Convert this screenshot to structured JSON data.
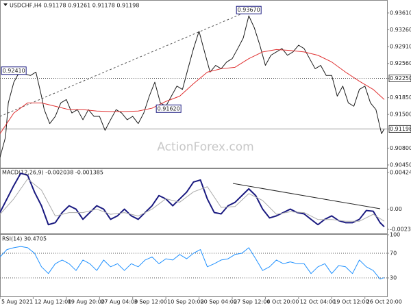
{
  "chart_data": [
    {
      "type": "line",
      "title": "USDCHF,H4  0.91178 0.91261 0.91178 0.91198",
      "watermark": "ActionForex.com",
      "xlim": [
        0,
        140
      ],
      "ylim": [
        0.90393,
        0.93865
      ],
      "yticks": [
        {
          "value": 0.9361,
          "label": "0.93610"
        },
        {
          "value": 0.9326,
          "label": "0.93260"
        },
        {
          "value": 0.9291,
          "label": "0.92910"
        },
        {
          "value": 0.9256,
          "label": "0.92560"
        },
        {
          "value": 0.9225,
          "label": "0.92250"
        },
        {
          "value": 0.9185,
          "label": "0.91850"
        },
        {
          "value": 0.915,
          "label": "0.91500"
        },
        0.91198,
        {
          "value": 0.908,
          "label": "0.90800"
        },
        {
          "value": 0.9045,
          "label": "0.90450"
        }
      ],
      "hlines": [
        0.9225,
        0.91198
      ],
      "annotations": [
        {
          "x": 90,
          "value": 0.9367,
          "label": "0.93670"
        },
        {
          "x": 5,
          "value": 0.9241,
          "label": "0.92410"
        },
        {
          "x": 61,
          "value": 0.9162,
          "label": "0.91620"
        }
      ],
      "series": [
        {
          "color": "#1a1a1a",
          "x": [
            0,
            2,
            3,
            5,
            7,
            9,
            11,
            13,
            15,
            16,
            18,
            20,
            22,
            24,
            26,
            28,
            30,
            32,
            34,
            36,
            38,
            40,
            42,
            44,
            46,
            48,
            50,
            52,
            54,
            56,
            58,
            60,
            62,
            64,
            66,
            68,
            70,
            72,
            74,
            76,
            78,
            80,
            82,
            84,
            86,
            88,
            90,
            92,
            94,
            96,
            98,
            100,
            102,
            104,
            106,
            108,
            110,
            112,
            114,
            116,
            118,
            120,
            122,
            124,
            126,
            128,
            130,
            132,
            134,
            136,
            138,
            139
          ],
          "values": [
            0.9061,
            0.9103,
            0.9174,
            0.9217,
            0.9238,
            0.9234,
            0.9231,
            0.9238,
            0.9188,
            0.916,
            0.9131,
            0.9146,
            0.9174,
            0.9181,
            0.9153,
            0.916,
            0.9139,
            0.916,
            0.9146,
            0.9146,
            0.9117,
            0.9139,
            0.916,
            0.9153,
            0.9139,
            0.9146,
            0.9131,
            0.9153,
            0.9188,
            0.9217,
            0.9174,
            0.9167,
            0.9188,
            0.9209,
            0.9202,
            0.9245,
            0.9287,
            0.9323,
            0.928,
            0.9238,
            0.9252,
            0.9245,
            0.9259,
            0.9266,
            0.9287,
            0.9309,
            0.9355,
            0.933,
            0.9294,
            0.9252,
            0.9273,
            0.928,
            0.9287,
            0.9273,
            0.928,
            0.9294,
            0.9287,
            0.9266,
            0.9245,
            0.9252,
            0.9231,
            0.9231,
            0.9188,
            0.9209,
            0.9174,
            0.9167,
            0.9202,
            0.9209,
            0.9174,
            0.916,
            0.911,
            0.91198
          ]
        },
        {
          "color": "#e03030",
          "x": [
            0,
            5,
            10,
            15,
            20,
            25,
            30,
            35,
            40,
            45,
            50,
            55,
            60,
            65,
            70,
            75,
            80,
            85,
            90,
            95,
            100,
            105,
            110,
            115,
            120,
            125,
            130,
            135,
            139
          ],
          "values": [
            0.911,
            0.9153,
            0.9174,
            0.9174,
            0.9167,
            0.916,
            0.916,
            0.9157,
            0.9156,
            0.9156,
            0.9157,
            0.9163,
            0.9177,
            0.9188,
            0.9214,
            0.9238,
            0.9245,
            0.9248,
            0.9266,
            0.928,
            0.9285,
            0.9283,
            0.928,
            0.9273,
            0.9259,
            0.9238,
            0.9219,
            0.9202,
            0.9181
          ]
        }
      ]
    },
    {
      "type": "line",
      "title": "MACD(12,26,9) -0.002038 -0.001385",
      "xlim": [
        0,
        140
      ],
      "ylim": [
        -0.00281,
        0.00464
      ],
      "yticks": [
        0.004248,
        {
          "value": 0,
          "label": "0.00"
        },
        -0.002337
      ],
      "series": [
        {
          "color": "#1a1a80",
          "width": 2,
          "x": [
            0,
            2.5,
            5,
            7.5,
            10,
            12.5,
            15,
            17.5,
            20,
            22.5,
            25,
            27.5,
            30,
            32.5,
            35,
            37.5,
            40,
            42.5,
            45,
            47.5,
            50,
            52.5,
            55,
            57.5,
            60,
            62.5,
            65,
            67.5,
            70,
            72.5,
            75,
            77.5,
            80,
            82.5,
            85,
            87.5,
            90,
            92.5,
            95,
            97.5,
            100,
            102.5,
            105,
            107.5,
            110,
            112.5,
            115,
            117.5,
            120,
            122.5,
            125,
            127.5,
            130,
            132.5,
            135,
            137.5,
            139
          ],
          "values": [
            -0.00039,
            0.00118,
            0.00274,
            0.00415,
            0.00392,
            0.00196,
            0.00039,
            -0.0018,
            -0.00157,
            -0.00039,
            0.00039,
            0,
            -0.00118,
            -0.00039,
            0.00039,
            0,
            -0.00118,
            -0.00078,
            0,
            -0.00078,
            -0.00118,
            -0.00039,
            0.00039,
            0.00157,
            0.00118,
            0.00039,
            0.00118,
            0.00196,
            0.00314,
            0.00337,
            0.00118,
            -0.00039,
            -0.00055,
            0.00039,
            0.00078,
            0.00157,
            0.00235,
            0.00157,
            0,
            -0.00102,
            -0.00078,
            -0.00039,
            0,
            -0.00039,
            -0.00055,
            -0.00118,
            -0.0018,
            -0.00118,
            -0.00078,
            -0.00133,
            -0.00157,
            -0.00157,
            -0.00118,
            -0.00016,
            -0.00024,
            -0.00157,
            -0.00204
          ]
        },
        {
          "color": "#aaaaaa",
          "width": 1,
          "x": [
            0,
            5,
            10,
            15,
            20,
            25,
            30,
            35,
            40,
            45,
            50,
            55,
            60,
            65,
            70,
            75,
            80,
            85,
            90,
            95,
            100,
            105,
            110,
            115,
            120,
            125,
            130,
            135,
            139
          ],
          "values": [
            -0.0006,
            0.0012,
            0.0035,
            0.0022,
            -0.0008,
            -0.0004,
            -0.0004,
            0,
            -0.0006,
            -0.0004,
            -0.0008,
            0,
            0.0012,
            0.0008,
            0.002,
            0.0026,
            0.0002,
            0.0003,
            0.0018,
            0.001,
            -0.0006,
            -0.0003,
            -0.0004,
            -0.0012,
            -0.0012,
            -0.0014,
            -0.0014,
            -0.0006,
            -0.0014
          ]
        }
      ]
    },
    {
      "type": "line",
      "title": "RSI(14) 30.4705",
      "xlim": [
        0,
        140
      ],
      "ylim": [
        0,
        100
      ],
      "yticks": [
        100,
        70,
        30
      ],
      "hlines": [
        70,
        30
      ],
      "xticks": [
        {
          "value": 0,
          "label": "5 Aug 2021"
        },
        {
          "value": 12,
          "label": "12 Aug 12:00"
        },
        {
          "value": 24,
          "label": "19 Aug 20:00"
        },
        {
          "value": 36,
          "label": "27 Aug 04:00"
        },
        {
          "value": 48,
          "label": "3 Sep 12:00"
        },
        {
          "value": 60,
          "label": "10 Sep 20:00"
        },
        {
          "value": 72,
          "label": "20 Sep 04:00"
        },
        {
          "value": 84,
          "label": "27 Sep 12:00"
        },
        {
          "value": 96,
          "label": "4 Oct 20:00"
        },
        {
          "value": 108,
          "label": "12 Oct 04:00"
        },
        {
          "value": 120,
          "label": "19 Oct 12:00"
        },
        {
          "value": 132,
          "label": "26 Oct 20:00"
        }
      ],
      "series": [
        {
          "color": "#1e90ff",
          "width": 1,
          "x": [
            0,
            2.5,
            5,
            7.5,
            10,
            12.5,
            15,
            17.5,
            20,
            22.5,
            25,
            27.5,
            30,
            32.5,
            35,
            37.5,
            40,
            42.5,
            45,
            47.5,
            50,
            52.5,
            55,
            57.5,
            60,
            62.5,
            65,
            67.5,
            70,
            72.5,
            75,
            77.5,
            80,
            82.5,
            85,
            87.5,
            90,
            92.5,
            95,
            97.5,
            100,
            102.5,
            105,
            107.5,
            110,
            112.5,
            115,
            117.5,
            120,
            122.5,
            125,
            127.5,
            130,
            132.5,
            135,
            137.5,
            139
          ],
          "values": [
            64,
            76,
            79,
            81,
            79,
            70,
            48,
            37,
            53,
            59,
            53,
            42,
            59,
            53,
            42,
            59,
            48,
            53,
            42,
            53,
            48,
            59,
            64,
            53,
            61,
            59,
            68,
            61,
            70,
            76,
            48,
            53,
            59,
            61,
            68,
            70,
            79,
            61,
            42,
            48,
            59,
            53,
            56,
            53,
            53,
            37,
            48,
            53,
            37,
            50,
            48,
            37,
            59,
            48,
            42,
            28,
            30.47
          ]
        }
      ]
    }
  ]
}
